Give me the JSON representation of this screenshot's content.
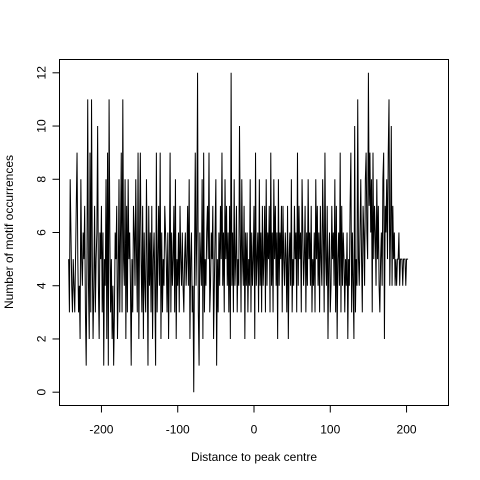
{
  "chart_data": {
    "type": "line",
    "title": "",
    "xlabel": "Distance to peak centre",
    "ylabel": "Number of motif occurrences",
    "xlim": [
      -255,
      255
    ],
    "ylim": [
      -0.5,
      12.5
    ],
    "xticks": [
      -200,
      -100,
      0,
      100,
      200
    ],
    "yticks": [
      0,
      2,
      4,
      6,
      8,
      10,
      12
    ],
    "grid": false,
    "series": [
      {
        "x_start": -243,
        "x_step": 1,
        "values": [
          5,
          3,
          8,
          6,
          4,
          3,
          5,
          4,
          3,
          5,
          7,
          9,
          5,
          3,
          4,
          2,
          8,
          5,
          4,
          6,
          5,
          7,
          3,
          1,
          5,
          11,
          4,
          2,
          9,
          3,
          11,
          5,
          2,
          4,
          7,
          3,
          5,
          6,
          10,
          4,
          2,
          6,
          5,
          7,
          3,
          6,
          1,
          5,
          4,
          8,
          2,
          9,
          1,
          11,
          6,
          3,
          5,
          2,
          4,
          1,
          3,
          6,
          5,
          7,
          2,
          4,
          8,
          3,
          6,
          9,
          3,
          11,
          5,
          4,
          8,
          2,
          7,
          3,
          8,
          5,
          6,
          4,
          1,
          5,
          3,
          7,
          6,
          4,
          8,
          5,
          3,
          9,
          2,
          6,
          9,
          5,
          3,
          7,
          2,
          6,
          4,
          3,
          8,
          5,
          1,
          7,
          4,
          6,
          3,
          7,
          2,
          5,
          6,
          4,
          1,
          9,
          3,
          5,
          7,
          4,
          9,
          2,
          6,
          3,
          5,
          4,
          7,
          6,
          5,
          3,
          6,
          2,
          5,
          9,
          3,
          6,
          4,
          5,
          7,
          3,
          8,
          2,
          5,
          4,
          6,
          3,
          7,
          5,
          4,
          6,
          4,
          3,
          5,
          6,
          4,
          5,
          7,
          4,
          8,
          2,
          5,
          6,
          3,
          4,
          0,
          5,
          9,
          4,
          6,
          12,
          3,
          1,
          6,
          5,
          4,
          8,
          2,
          9,
          3,
          5,
          4,
          6,
          7,
          5,
          9,
          3,
          4,
          6,
          5,
          7,
          2,
          4,
          6,
          8,
          1,
          5,
          3,
          6,
          4,
          7,
          5,
          9,
          4,
          6,
          3,
          8,
          5,
          7,
          4,
          6,
          3,
          7,
          2,
          12,
          4,
          6,
          3,
          8,
          4,
          5,
          7,
          3,
          5,
          4,
          10,
          6,
          3,
          8,
          5,
          4,
          7,
          2,
          6,
          4,
          6,
          3,
          5,
          4,
          8,
          3,
          6,
          4,
          5,
          7,
          2,
          9,
          4,
          5,
          6,
          3,
          8,
          4,
          6,
          3,
          7,
          4,
          5,
          7,
          3,
          8,
          4,
          6,
          5,
          7,
          3,
          9,
          4,
          6,
          3,
          8,
          5,
          7,
          4,
          6,
          2,
          8,
          4,
          6,
          5,
          7,
          3,
          7,
          5,
          4,
          6,
          5,
          3,
          7,
          2,
          5,
          6,
          4,
          8,
          3,
          5,
          4,
          7,
          5,
          6,
          3,
          9,
          4,
          7,
          5,
          6,
          3,
          8,
          6,
          4,
          5,
          7,
          3,
          6,
          4,
          8,
          5,
          6,
          4,
          7,
          3,
          5,
          4,
          6,
          3,
          8,
          5,
          7,
          4,
          6,
          3,
          7,
          5,
          4,
          8,
          6,
          3,
          9,
          5,
          4,
          7,
          2,
          5,
          6,
          3,
          4,
          7,
          5,
          6,
          4,
          8,
          3,
          7,
          2,
          5,
          6,
          4,
          9,
          3,
          7,
          4,
          6,
          5,
          3,
          5,
          4,
          6,
          2,
          5,
          4,
          7,
          9,
          3,
          6,
          4,
          2,
          10,
          3,
          5,
          4,
          11,
          5,
          4,
          6,
          8,
          5,
          3,
          7,
          6,
          4,
          8,
          9,
          6,
          5,
          12,
          7,
          9,
          6,
          8,
          3,
          9,
          5,
          7,
          6,
          4,
          8,
          5,
          7,
          4,
          3,
          5,
          6,
          4,
          8,
          9,
          2,
          7,
          6,
          8,
          5,
          9,
          11,
          4,
          6,
          10,
          4,
          7,
          5,
          6,
          4,
          5,
          4,
          5,
          5,
          6,
          4,
          5,
          5,
          5,
          4,
          5,
          5,
          5,
          4,
          5,
          5,
          5
        ]
      }
    ]
  }
}
